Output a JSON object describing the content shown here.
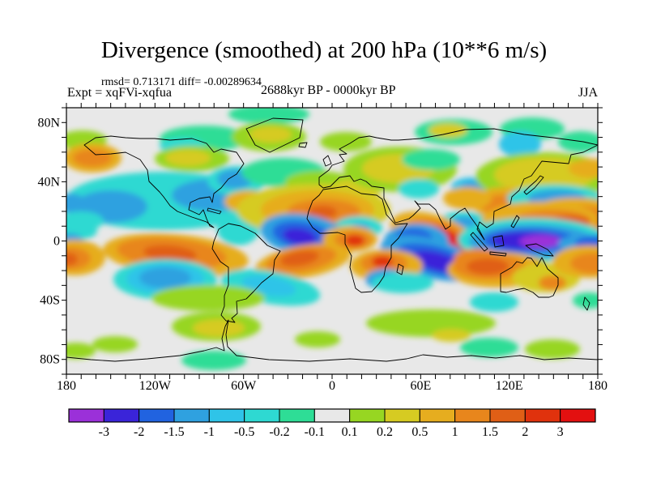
{
  "header": {
    "title": "Divergence (smoothed) at 200 hPa (10**6 m/s)",
    "stats_line": "rmsd= 0.713171 diff= -0.00289634",
    "experiment_label": "Expt = xqFVi-xqfua",
    "period_label": "2688kyr BP - 0000kyr BP",
    "season_label": "JJA"
  },
  "chart_data": {
    "type": "heatmap",
    "subtype": "filled-contour world map, equirectangular projection",
    "title": "Divergence (smoothed) at 200 hPa (10**6 m/s)",
    "annotations": [
      "rmsd= 0.713171 diff= -0.00289634",
      "Expt = xqFVi-xqfua",
      "2688kyr BP - 0000kyr BP",
      "JJA"
    ],
    "xlim": [
      -180,
      180
    ],
    "ylim": [
      -90,
      90
    ],
    "minor_tick_step_deg": 10,
    "grid": false,
    "x_ticks": [
      {
        "value": -180,
        "label": "180"
      },
      {
        "value": -120,
        "label": "120W"
      },
      {
        "value": -60,
        "label": "60W"
      },
      {
        "value": 0,
        "label": "0"
      },
      {
        "value": 60,
        "label": "60E"
      },
      {
        "value": 120,
        "label": "120E"
      },
      {
        "value": 180,
        "label": "180"
      }
    ],
    "y_ticks": [
      {
        "value": 80,
        "label": "80N"
      },
      {
        "value": 40,
        "label": "40N"
      },
      {
        "value": 0,
        "label": "0"
      },
      {
        "value": -40,
        "label": "40S"
      },
      {
        "value": -80,
        "label": "80S"
      }
    ],
    "colorbar": {
      "position": "bottom",
      "boundary_labels": [
        "-3",
        "-2",
        "-1.5",
        "-1",
        "-0.5",
        "-0.2",
        "-0.1",
        "0.1",
        "0.2",
        "0.5",
        "1",
        "1.5",
        "2",
        "3"
      ],
      "segment_colors": [
        "#9b30d9",
        "#3a24d9",
        "#2163e0",
        "#2fa1e0",
        "#2fc4e8",
        "#2ed9d2",
        "#2edd96",
        "#e8e8e8",
        "#97d622",
        "#d6cb22",
        "#e6ad1f",
        "#e8861c",
        "#e05f16",
        "#e0320d",
        "#e31010"
      ]
    },
    "background_value_color": "#e8e8e8",
    "palette": {
      "purple": "#9b30d9",
      "indigo": "#3a24d9",
      "blue": "#2163e0",
      "sky": "#2fa1e0",
      "lightcyan": "#2fc4e8",
      "cyan": "#2ed9d2",
      "teal": "#2edd96",
      "green": "#97d622",
      "olive": "#d6cb22",
      "gold": "#e6ad1f",
      "orange": "#e8861c",
      "darkorange": "#e05f16",
      "redorange": "#e0320d",
      "red": "#e31010"
    },
    "features_note": "approximate anomaly blobs [color,cx,cy,rx,ry,rot] in map pixels (656x329, x=0 is 180W, y=0 is 90N)",
    "features": [
      [
        "teal",
        250,
        8,
        50,
        12,
        0
      ],
      [
        "teal",
        170,
        38,
        55,
        16,
        0
      ],
      [
        "cyan",
        143,
        47,
        28,
        10,
        0
      ],
      [
        "green",
        250,
        36,
        46,
        18,
        0
      ],
      [
        "olive",
        252,
        33,
        26,
        10,
        0
      ],
      [
        "green",
        345,
        42,
        32,
        12,
        0
      ],
      [
        "teal",
        478,
        30,
        48,
        16,
        0
      ],
      [
        "olive",
        471,
        28,
        24,
        9,
        0
      ],
      [
        "teal",
        575,
        26,
        40,
        14,
        0
      ],
      [
        "lightcyan",
        560,
        45,
        26,
        16,
        0
      ],
      [
        "teal",
        635,
        42,
        28,
        13,
        0
      ],
      [
        "green",
        20,
        40,
        30,
        12,
        0
      ],
      [
        "gold",
        32,
        62,
        36,
        18,
        0
      ],
      [
        "orange",
        32,
        62,
        24,
        11,
        0
      ],
      [
        "cyan",
        120,
        115,
        122,
        36,
        0
      ],
      [
        "sky",
        55,
        122,
        45,
        20,
        0
      ],
      [
        "sky",
        182,
        108,
        52,
        20,
        0
      ],
      [
        "green",
        155,
        63,
        46,
        16,
        0
      ],
      [
        "olive",
        150,
        62,
        28,
        10,
        0
      ],
      [
        "cyan",
        210,
        90,
        36,
        18,
        0
      ],
      [
        "sky",
        208,
        88,
        22,
        12,
        0
      ],
      [
        "teal",
        268,
        80,
        52,
        18,
        0
      ],
      [
        "gold",
        225,
        116,
        30,
        14,
        0
      ],
      [
        "cyan",
        212,
        150,
        26,
        20,
        0
      ],
      [
        "sky",
        5,
        118,
        20,
        12,
        0
      ],
      [
        "cyan",
        18,
        140,
        28,
        12,
        0
      ],
      [
        "green",
        312,
        92,
        42,
        14,
        0
      ],
      [
        "olive",
        358,
        100,
        32,
        12,
        0
      ],
      [
        "olive",
        305,
        126,
        95,
        32,
        0
      ],
      [
        "gold",
        310,
        126,
        70,
        24,
        0
      ],
      [
        "orange",
        318,
        128,
        45,
        15,
        0
      ],
      [
        "darkorange",
        316,
        129,
        18,
        8,
        0
      ],
      [
        "green",
        412,
        76,
        70,
        28,
        0
      ],
      [
        "olive",
        410,
        75,
        45,
        18,
        0
      ],
      [
        "teal",
        450,
        64,
        36,
        13,
        0
      ],
      [
        "cyan",
        435,
        100,
        25,
        12,
        0
      ],
      [
        "lightcyan",
        500,
        98,
        25,
        12,
        0
      ],
      [
        "sky",
        500,
        98,
        13,
        7,
        0
      ],
      [
        "green",
        590,
        85,
        85,
        30,
        0
      ],
      [
        "olive",
        590,
        83,
        62,
        22,
        0
      ],
      [
        "gold",
        648,
        75,
        28,
        12,
        0
      ],
      [
        "gold",
        540,
        118,
        40,
        20,
        0
      ],
      [
        "orange",
        538,
        120,
        26,
        13,
        0
      ],
      [
        "cyan",
        602,
        112,
        58,
        17,
        0
      ],
      [
        "sky",
        606,
        112,
        36,
        11,
        0
      ],
      [
        "gold",
        628,
        133,
        60,
        22,
        0
      ],
      [
        "orange",
        634,
        136,
        42,
        15,
        0
      ],
      [
        "darkorange",
        640,
        138,
        22,
        8,
        0
      ],
      [
        "gold",
        495,
        112,
        30,
        14,
        0
      ],
      [
        "cyan",
        490,
        141,
        30,
        13,
        0
      ],
      [
        "sky",
        491,
        141,
        16,
        7,
        0
      ],
      [
        "gold",
        585,
        138,
        72,
        22,
        0
      ],
      [
        "orange",
        600,
        140,
        48,
        14,
        0
      ],
      [
        "darkorange",
        622,
        141,
        24,
        8,
        0
      ],
      [
        "gold",
        455,
        161,
        58,
        28,
        20
      ],
      [
        "orange",
        460,
        162,
        45,
        22,
        20
      ],
      [
        "redorange",
        463,
        163,
        30,
        15,
        20
      ],
      [
        "red",
        465,
        164,
        20,
        11,
        20
      ],
      [
        "sky",
        432,
        165,
        40,
        22,
        0
      ],
      [
        "blue",
        428,
        162,
        24,
        13,
        0
      ],
      [
        "sky",
        450,
        186,
        64,
        24,
        15
      ],
      [
        "blue",
        455,
        188,
        48,
        17,
        15
      ],
      [
        "indigo",
        458,
        190,
        32,
        11,
        15
      ],
      [
        "cyan",
        360,
        148,
        30,
        14,
        0
      ],
      [
        "sky",
        362,
        150,
        14,
        7,
        0
      ],
      [
        "sky",
        295,
        158,
        56,
        26,
        10
      ],
      [
        "blue",
        292,
        158,
        38,
        17,
        10
      ],
      [
        "indigo",
        288,
        159,
        21,
        10,
        10
      ],
      [
        "gold",
        350,
        162,
        34,
        16,
        0
      ],
      [
        "orange",
        354,
        163,
        23,
        11,
        0
      ],
      [
        "redorange",
        356,
        164,
        12,
        7,
        0
      ],
      [
        "gold",
        292,
        190,
        60,
        20,
        -10
      ],
      [
        "orange",
        290,
        188,
        44,
        15,
        -10
      ],
      [
        "darkorange",
        288,
        186,
        24,
        9,
        -10
      ],
      [
        "gold",
        395,
        195,
        45,
        20,
        0
      ],
      [
        "orange",
        392,
        192,
        29,
        13,
        0
      ],
      [
        "redorange",
        390,
        190,
        13,
        7,
        0
      ],
      [
        "cyan",
        575,
        163,
        92,
        27,
        0
      ],
      [
        "sky",
        575,
        165,
        78,
        21,
        0
      ],
      [
        "blue",
        572,
        164,
        58,
        15,
        0
      ],
      [
        "indigo",
        568,
        164,
        44,
        11,
        0
      ],
      [
        "purple",
        585,
        165,
        26,
        8,
        0
      ],
      [
        "sky",
        645,
        168,
        38,
        12,
        0
      ],
      [
        "blue",
        650,
        167,
        22,
        8,
        0
      ],
      [
        "green",
        572,
        200,
        26,
        16,
        0
      ],
      [
        "gold",
        532,
        200,
        62,
        22,
        0
      ],
      [
        "orange",
        522,
        196,
        45,
        16,
        0
      ],
      [
        "orange",
        508,
        186,
        30,
        12,
        0
      ],
      [
        "darkorange",
        520,
        196,
        26,
        10,
        0
      ],
      [
        "olive",
        592,
        210,
        42,
        18,
        0
      ],
      [
        "orange",
        600,
        216,
        17,
        9,
        0
      ],
      [
        "cyan",
        10,
        152,
        28,
        12,
        0
      ],
      [
        "sky",
        3,
        165,
        18,
        10,
        0
      ],
      [
        "gold",
        10,
        185,
        38,
        22,
        0
      ],
      [
        "orange",
        5,
        186,
        25,
        14,
        0
      ],
      [
        "darkorange",
        2,
        187,
        12,
        8,
        0
      ],
      [
        "gold",
        645,
        190,
        45,
        20,
        0
      ],
      [
        "orange",
        650,
        192,
        28,
        13,
        0
      ],
      [
        "gold",
        135,
        182,
        90,
        26,
        5
      ],
      [
        "orange",
        130,
        180,
        68,
        19,
        5
      ],
      [
        "darkorange",
        128,
        180,
        33,
        10,
        5
      ],
      [
        "cyan",
        122,
        212,
        64,
        25,
        0
      ],
      [
        "lightcyan",
        122,
        211,
        48,
        19,
        0
      ],
      [
        "sky",
        122,
        210,
        32,
        13,
        0
      ],
      [
        "cyan",
        252,
        222,
        62,
        20,
        10
      ],
      [
        "lightcyan",
        250,
        220,
        34,
        12,
        10
      ],
      [
        "green",
        175,
        235,
        70,
        16,
        0
      ],
      [
        "green",
        185,
        270,
        55,
        18,
        0
      ],
      [
        "olive",
        188,
        272,
        32,
        11,
        0
      ],
      [
        "sky",
        395,
        212,
        26,
        13,
        0
      ],
      [
        "blue",
        395,
        212,
        14,
        8,
        0
      ],
      [
        "cyan",
        415,
        216,
        38,
        13,
        0
      ],
      [
        "green",
        450,
        266,
        80,
        17,
        0
      ],
      [
        "olive",
        475,
        281,
        24,
        8,
        0
      ],
      [
        "cyan",
        528,
        240,
        30,
        12,
        0
      ],
      [
        "teal",
        645,
        238,
        20,
        10,
        0
      ],
      [
        "teal",
        522,
        296,
        36,
        12,
        0
      ],
      [
        "green",
        600,
        298,
        34,
        12,
        0
      ],
      [
        "teal",
        182,
        312,
        40,
        12,
        0
      ],
      [
        "green",
        60,
        292,
        28,
        10,
        0
      ],
      [
        "green",
        310,
        286,
        28,
        10,
        0
      ],
      [
        "green",
        12,
        300,
        24,
        10,
        0
      ]
    ]
  }
}
